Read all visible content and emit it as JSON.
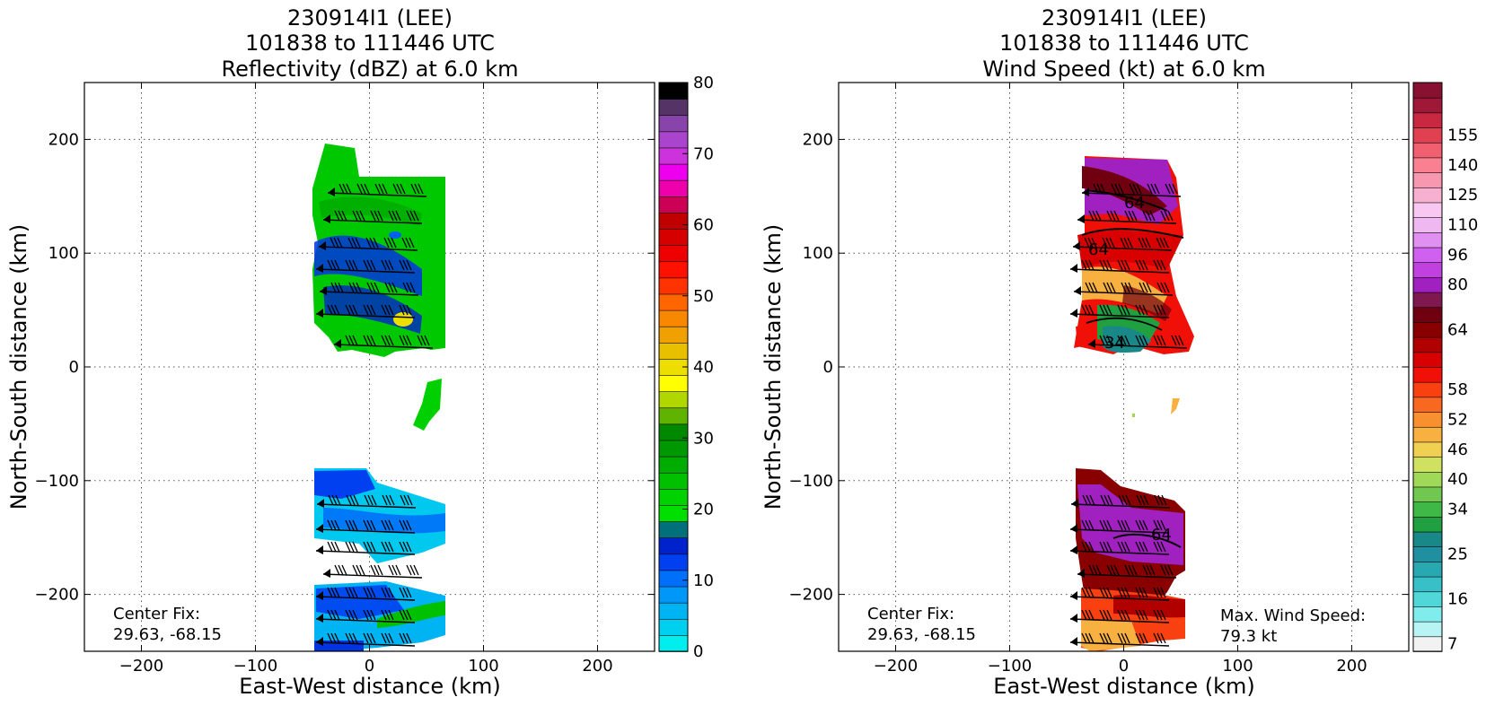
{
  "chart_data": [
    {
      "type": "heatmap",
      "title_lines": [
        "230914I1 (LEE)",
        "101838 to 111446 UTC",
        "Reflectivity (dBZ) at 6.0 km"
      ],
      "xlabel": "East-West distance (km)",
      "ylabel": "North-South distance (km)",
      "xlim": [
        -250,
        250
      ],
      "ylim": [
        -250,
        250
      ],
      "xticks": [
        -200,
        -100,
        0,
        100,
        200
      ],
      "yticks": [
        -200,
        -100,
        0,
        100,
        200
      ],
      "x_tick_labels": [
        "−200",
        "−100",
        "0",
        "100",
        "200"
      ],
      "y_tick_labels": [
        "−200",
        "−100",
        "0",
        "100",
        "200"
      ],
      "grid": true,
      "annotations": [
        {
          "text": "Center Fix:",
          "position": "bottom-left"
        },
        {
          "text": "29.63, -68.15",
          "position": "bottom-left"
        }
      ],
      "colorbar": {
        "min": 0,
        "max": 80,
        "tick_values": [
          0,
          10,
          20,
          30,
          40,
          50,
          60,
          70,
          80
        ],
        "tick_labels": [
          "0",
          "10",
          "20",
          "30",
          "40",
          "50",
          "60",
          "70",
          "80"
        ],
        "colors": [
          "#00eeee",
          "#00d0f0",
          "#00b4f4",
          "#0098f8",
          "#0070fa",
          "#0040f0",
          "#0022cc",
          "#00707a",
          "#00e000",
          "#00d200",
          "#00c000",
          "#00ac00",
          "#009800",
          "#008800",
          "#60b400",
          "#b0d800",
          "#ffff00",
          "#ecdf00",
          "#e8c000",
          "#f0a000",
          "#f88800",
          "#ff6600",
          "#ff3300",
          "#ff1100",
          "#ee0000",
          "#d60000",
          "#c00000",
          "#cc0055",
          "#ee00aa",
          "#ee00ee",
          "#cc33dd",
          "#aa44cc",
          "#8844aa",
          "#553366",
          "#000000"
        ]
      }
    },
    {
      "type": "heatmap",
      "title_lines": [
        "230914I1 (LEE)",
        "101838 to 111446 UTC",
        "Wind Speed (kt) at 6.0 km"
      ],
      "xlabel": "East-West distance (km)",
      "ylabel": "North-South distance (km)",
      "xlim": [
        -250,
        250
      ],
      "ylim": [
        -250,
        250
      ],
      "xticks": [
        -200,
        -100,
        0,
        100,
        200
      ],
      "yticks": [
        -200,
        -100,
        0,
        100,
        200
      ],
      "x_tick_labels": [
        "−200",
        "−100",
        "0",
        "100",
        "200"
      ],
      "y_tick_labels": [
        "−200",
        "−100",
        "0",
        "100",
        "200"
      ],
      "grid": true,
      "contour_labels": [
        "64",
        "64",
        "34",
        "64"
      ],
      "annotations": [
        {
          "text": "Center Fix:",
          "position": "bottom-left"
        },
        {
          "text": "29.63, -68.15",
          "position": "bottom-left"
        },
        {
          "text": "Max. Wind Speed:",
          "position": "bottom-right"
        },
        {
          "text": "79.3 kt",
          "position": "bottom-right"
        }
      ],
      "colorbar": {
        "tick_labels": [
          "7",
          "16",
          "25",
          "34",
          "40",
          "46",
          "52",
          "58",
          "64",
          "80",
          "96",
          "110",
          "125",
          "140",
          "155"
        ],
        "colors": [
          "#f2f2f2",
          "#b8f4f4",
          "#80ecec",
          "#50d8d8",
          "#38c0c8",
          "#28a8b0",
          "#2090a0",
          "#188888",
          "#20a040",
          "#40b848",
          "#70c850",
          "#a0d858",
          "#d0e060",
          "#f0d050",
          "#f8b040",
          "#f89030",
          "#f86820",
          "#f84010",
          "#f01008",
          "#d80000",
          "#b00000",
          "#880000",
          "#700010",
          "#801850",
          "#a020c0",
          "#c040e0",
          "#d060f0",
          "#e090f0",
          "#f0b8f0",
          "#f8c8f0",
          "#f8b0d0",
          "#f898b0",
          "#f88090",
          "#f06070",
          "#e04050",
          "#c82840",
          "#a01838",
          "#881030"
        ],
        "band_tick_index": [
          0,
          3,
          6,
          9,
          11,
          13,
          15,
          17,
          21,
          24,
          26,
          28,
          30,
          32,
          34
        ]
      }
    }
  ]
}
